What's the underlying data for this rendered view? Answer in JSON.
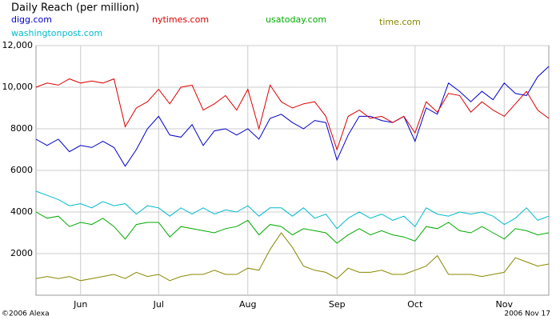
{
  "chart_data": {
    "type": "line",
    "title": "Daily Reach (per million)",
    "categories": [
      null,
      null,
      null,
      null,
      "Jun",
      null,
      null,
      null,
      null,
      null,
      null,
      "Jul",
      null,
      null,
      null,
      null,
      null,
      null,
      null,
      "Aug",
      null,
      null,
      null,
      null,
      null,
      null,
      null,
      "Sep",
      null,
      null,
      null,
      null,
      null,
      null,
      "Oct",
      null,
      null,
      null,
      null,
      null,
      null,
      null,
      "Nov",
      null,
      null,
      null,
      null
    ],
    "series": [
      {
        "name": "digg.com",
        "color": "#0000cc",
        "values": [
          7500,
          7200,
          7500,
          6900,
          7200,
          7100,
          7400,
          7100,
          6200,
          7000,
          8000,
          8600,
          7700,
          7600,
          8200,
          7200,
          7900,
          8000,
          7700,
          8000,
          7500,
          8500,
          8700,
          8300,
          8000,
          8400,
          8300,
          6500,
          7700,
          8600,
          8600,
          8400,
          8300,
          8600,
          7400,
          9000,
          8700,
          10200,
          9800,
          9300,
          9800,
          9400,
          10200,
          9700,
          9600,
          10500,
          11000
        ]
      },
      {
        "name": "nytimes.com",
        "color": "#dd0000",
        "values": [
          10000,
          10200,
          10100,
          10400,
          10200,
          10300,
          10200,
          10400,
          8100,
          9000,
          9300,
          9900,
          9200,
          10000,
          10100,
          8900,
          9200,
          9600,
          8900,
          9900,
          8000,
          10100,
          9300,
          9000,
          9200,
          9300,
          8600,
          7000,
          8600,
          8900,
          8500,
          8600,
          8300,
          8600,
          7800,
          9300,
          8800,
          9700,
          9600,
          8800,
          9300,
          8900,
          8600,
          9200,
          9800,
          8900,
          8500
        ]
      },
      {
        "name": "usatoday.com",
        "color": "#00aa00",
        "values": [
          4000,
          3700,
          3800,
          3300,
          3500,
          3400,
          3700,
          3300,
          2700,
          3400,
          3500,
          3500,
          2800,
          3300,
          3200,
          3100,
          3000,
          3200,
          3300,
          3600,
          2900,
          3400,
          3300,
          2900,
          3200,
          3100,
          3000,
          2500,
          2900,
          3200,
          2900,
          3100,
          2900,
          2800,
          2600,
          3300,
          3200,
          3500,
          3100,
          3000,
          3300,
          3000,
          2700,
          3200,
          3100,
          2900,
          3000
        ]
      },
      {
        "name": "time.com",
        "color": "#888800",
        "values": [
          800,
          900,
          800,
          900,
          700,
          800,
          900,
          1000,
          800,
          1100,
          900,
          1000,
          700,
          900,
          1000,
          1000,
          1200,
          1000,
          1000,
          1300,
          1200,
          2200,
          3000,
          2300,
          1400,
          1200,
          1100,
          800,
          1300,
          1100,
          1100,
          1200,
          1000,
          1000,
          1200,
          1400,
          1900,
          1000,
          1000,
          1000,
          900,
          1000,
          1100,
          1800,
          1600,
          1400,
          1500
        ]
      },
      {
        "name": "washingtonpost.com",
        "color": "#00bbcc",
        "values": [
          5000,
          4800,
          4600,
          4300,
          4400,
          4200,
          4500,
          4300,
          4400,
          3900,
          4300,
          4200,
          3800,
          4200,
          3900,
          4200,
          3900,
          4100,
          4000,
          4300,
          3800,
          4200,
          4200,
          3800,
          4200,
          3700,
          3900,
          3200,
          3700,
          4000,
          3700,
          3900,
          3600,
          3800,
          3300,
          4200,
          3900,
          3800,
          4000,
          3900,
          4000,
          3800,
          3400,
          3700,
          4200,
          3600,
          3800
        ]
      }
    ],
    "ylim": [
      0,
      12000
    ],
    "yticks": [
      2000,
      4000,
      6000,
      8000,
      {
        "value": 10000,
        "label": "10,000"
      },
      {
        "value": 12000,
        "label": "12,000"
      }
    ],
    "grid": true,
    "credit": "©2006 Alexa",
    "date": "2006 Nov 17"
  }
}
